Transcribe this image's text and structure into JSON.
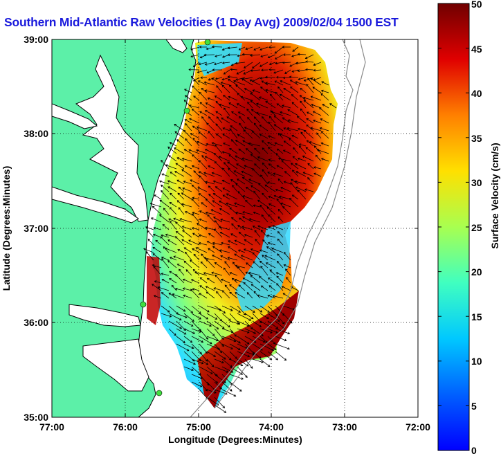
{
  "title": "Southern Mid-Atlantic Raw Velocities (1 Day Avg) 2009/02/04 1500 EST",
  "map": {
    "xlabel": "Longitude (Degrees:Minutes)",
    "ylabel": "Latitude (Degrees:Minutes)",
    "xticks": [
      "77:00",
      "76:00",
      "75:00",
      "74:00",
      "73:00",
      "72:00"
    ],
    "yticks": [
      "39:00",
      "38:00",
      "37:00",
      "36:00",
      "35:00"
    ],
    "lon_range": [
      -77,
      -72
    ],
    "lat_range": [
      35,
      39
    ],
    "land_color": "#5cf0a8",
    "grid": "dotted"
  },
  "colorbar": {
    "label": "Surface Velocity (cm/s)",
    "ticks": [
      "50",
      "45",
      "40",
      "35",
      "30",
      "25",
      "20",
      "15",
      "10",
      "5",
      "0"
    ],
    "range": [
      0,
      50
    ],
    "colormap": "jet"
  }
}
